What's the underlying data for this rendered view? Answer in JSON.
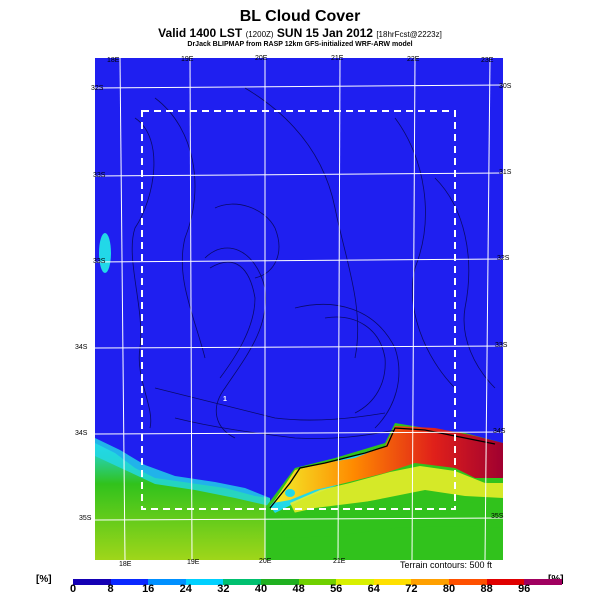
{
  "header": {
    "title": "BL Cloud Cover",
    "subtitle_main": "Valid 1400 LST",
    "subtitle_id": "(1200Z)",
    "subtitle_date": "SUN 15 Jan 2012",
    "subtitle_run": "[18hrFcst@2223z]",
    "source": "DrJack BLIPMAP from RASP 12km GFS-initialized WRF-ARW model"
  },
  "map": {
    "longitude_labels_top": [
      "18E",
      "19E",
      "20E",
      "21E",
      "22E",
      "23E"
    ],
    "longitude_labels_bottom": [
      "18E",
      "19E",
      "20E",
      "21E"
    ],
    "latitude_labels_left": [
      "32S",
      "33S",
      "33S",
      "34S",
      "34S",
      "35S"
    ],
    "latitude_labels_right": [
      "30S",
      "31S",
      "32S",
      "33S",
      "34S",
      "35S"
    ],
    "marker_label": "1",
    "terrain_note": "Terrain contours: 500 ft",
    "colors": {
      "low_cloud": "#1f1ff0",
      "land_hatch": "#0d0d8a",
      "coast_cyan": "#22d8e8",
      "green": "#31c21c",
      "yellow": "#f2f02a",
      "red": "#e0201a"
    }
  },
  "colorbar": {
    "unit": "[%]",
    "ticks": [
      "0",
      "8",
      "16",
      "24",
      "32",
      "40",
      "48",
      "56",
      "64",
      "72",
      "80",
      "88",
      "96"
    ],
    "colors": [
      "#1400b4",
      "#0a28ff",
      "#0090ff",
      "#00d0ff",
      "#00c070",
      "#20b020",
      "#70d000",
      "#d8f000",
      "#ffe000",
      "#ffa000",
      "#ff5000",
      "#e00000",
      "#a00060"
    ]
  }
}
